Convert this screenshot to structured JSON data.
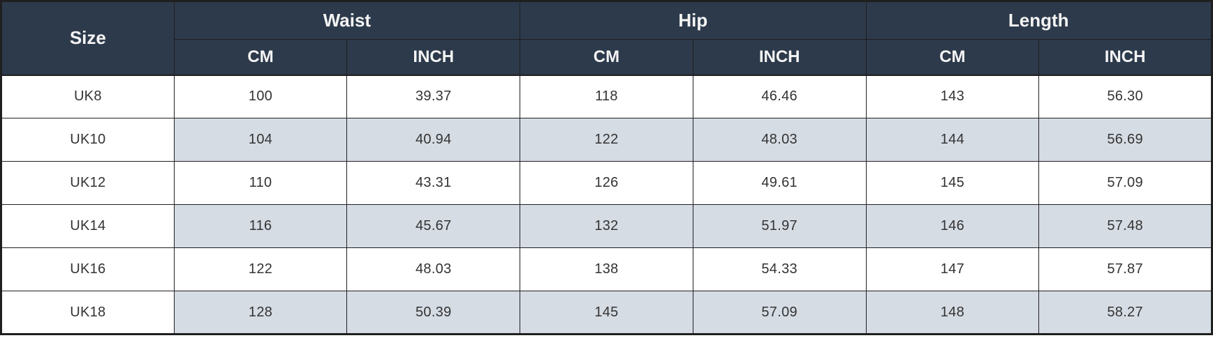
{
  "table": {
    "size_header": "Size",
    "groups": [
      {
        "label": "Waist"
      },
      {
        "label": "Hip"
      },
      {
        "label": "Length"
      }
    ],
    "unit_headers": [
      "CM",
      "INCH",
      "CM",
      "INCH",
      "CM",
      "INCH"
    ],
    "rows": [
      {
        "size": "UK8",
        "values": [
          "100",
          "39.37",
          "118",
          "46.46",
          "143",
          "56.30"
        ]
      },
      {
        "size": "UK10",
        "values": [
          "104",
          "40.94",
          "122",
          "48.03",
          "144",
          "56.69"
        ]
      },
      {
        "size": "UK12",
        "values": [
          "110",
          "43.31",
          "126",
          "49.61",
          "145",
          "57.09"
        ]
      },
      {
        "size": "UK14",
        "values": [
          "116",
          "45.67",
          "132",
          "51.97",
          "146",
          "57.48"
        ]
      },
      {
        "size": "UK16",
        "values": [
          "122",
          "48.03",
          "138",
          "54.33",
          "147",
          "57.87"
        ]
      },
      {
        "size": "UK18",
        "values": [
          "128",
          "50.39",
          "145",
          "57.09",
          "148",
          "58.27"
        ]
      }
    ]
  },
  "colors": {
    "header_bg": "#2d3a4b",
    "header_text": "#f4f4f4",
    "row_bg": "#ffffff",
    "row_alt_bg": "#d6dce4",
    "body_text": "#333333",
    "border": "#1f1f1f"
  },
  "chart_data": {
    "type": "table",
    "title": "Garment size chart (UK sizes) with Waist, Hip and Length in CM and INCH",
    "columns": [
      "Size",
      "Waist CM",
      "Waist INCH",
      "Hip CM",
      "Hip INCH",
      "Length CM",
      "Length INCH"
    ],
    "rows": [
      [
        "UK8",
        100,
        39.37,
        118,
        46.46,
        143,
        56.3
      ],
      [
        "UK10",
        104,
        40.94,
        122,
        48.03,
        144,
        56.69
      ],
      [
        "UK12",
        110,
        43.31,
        126,
        49.61,
        145,
        57.09
      ],
      [
        "UK14",
        116,
        45.67,
        132,
        51.97,
        146,
        57.48
      ],
      [
        "UK16",
        122,
        48.03,
        138,
        54.33,
        147,
        57.87
      ],
      [
        "UK18",
        128,
        50.39,
        145,
        57.09,
        148,
        58.27
      ]
    ],
    "layout_hints": {
      "column_groups": [
        {
          "label": "Size",
          "span": 1
        },
        {
          "label": "Waist",
          "span": 2
        },
        {
          "label": "Hip",
          "span": 2
        },
        {
          "label": "Length",
          "span": 2
        }
      ],
      "striping": "alternate rows shaded on measurement columns only",
      "grid": true
    }
  }
}
